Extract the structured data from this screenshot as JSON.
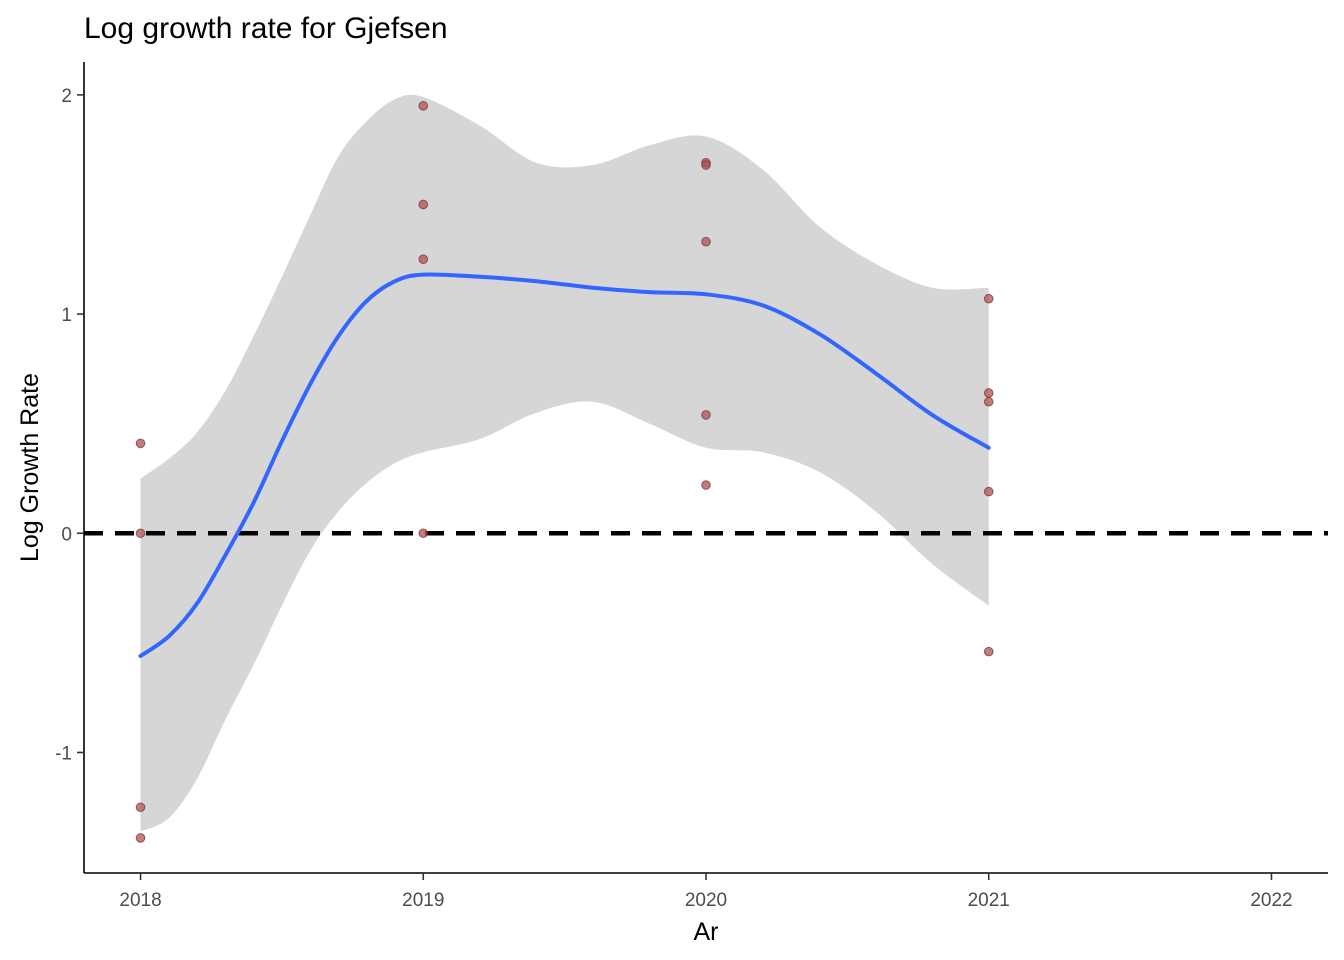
{
  "chart_data": {
    "type": "scatter",
    "title": "Log growth rate for Gjefsen",
    "xlabel": "Ar",
    "ylabel": "Log Growth Rate",
    "xlim": [
      2017.8,
      2022.2
    ],
    "ylim": [
      -1.55,
      2.15
    ],
    "x_ticks": [
      2018,
      2019,
      2020,
      2021,
      2022
    ],
    "y_ticks": [
      -1,
      0,
      1,
      2
    ],
    "grid": false,
    "legend": "none",
    "colors": {
      "points": "#b2504f",
      "smooth_line": "#3366ff",
      "ribbon": "#d6d6d6",
      "reference_line": "#000000"
    },
    "reference_line": {
      "y": 0,
      "style": "dashed"
    },
    "points": [
      {
        "x": 2018,
        "y": 0.41
      },
      {
        "x": 2018,
        "y": 0.0
      },
      {
        "x": 2018,
        "y": -1.25
      },
      {
        "x": 2018,
        "y": -1.39
      },
      {
        "x": 2019,
        "y": 1.95
      },
      {
        "x": 2019,
        "y": 1.5
      },
      {
        "x": 2019,
        "y": 1.25
      },
      {
        "x": 2019,
        "y": 0.0
      },
      {
        "x": 2020,
        "y": 1.69
      },
      {
        "x": 2020,
        "y": 1.68
      },
      {
        "x": 2020,
        "y": 1.33
      },
      {
        "x": 2020,
        "y": 0.54
      },
      {
        "x": 2020,
        "y": 0.22
      },
      {
        "x": 2021,
        "y": 1.07
      },
      {
        "x": 2021,
        "y": 0.64
      },
      {
        "x": 2021,
        "y": 0.6
      },
      {
        "x": 2021,
        "y": 0.19
      },
      {
        "x": 2021,
        "y": -0.54
      }
    ],
    "smooth": {
      "method": "loess",
      "x": [
        2018.0,
        2018.1,
        2018.2,
        2018.3,
        2018.4,
        2018.5,
        2018.6,
        2018.7,
        2018.8,
        2018.9,
        2019.0,
        2019.2,
        2019.4,
        2019.6,
        2019.8,
        2020.0,
        2020.2,
        2020.4,
        2020.6,
        2020.8,
        2021.0
      ],
      "y": [
        -0.56,
        -0.47,
        -0.32,
        -0.1,
        0.14,
        0.42,
        0.68,
        0.9,
        1.06,
        1.15,
        1.18,
        1.17,
        1.15,
        1.12,
        1.1,
        1.09,
        1.04,
        0.91,
        0.73,
        0.54,
        0.39
      ],
      "upper": [
        0.25,
        0.34,
        0.46,
        0.65,
        0.9,
        1.17,
        1.45,
        1.72,
        1.88,
        1.98,
        1.99,
        1.86,
        1.69,
        1.68,
        1.77,
        1.81,
        1.66,
        1.4,
        1.23,
        1.12,
        1.12
      ],
      "lower": [
        -1.36,
        -1.3,
        -1.12,
        -0.85,
        -0.6,
        -0.33,
        -0.08,
        0.1,
        0.23,
        0.32,
        0.37,
        0.43,
        0.55,
        0.6,
        0.5,
        0.39,
        0.37,
        0.28,
        0.1,
        -0.14,
        -0.33
      ]
    }
  }
}
